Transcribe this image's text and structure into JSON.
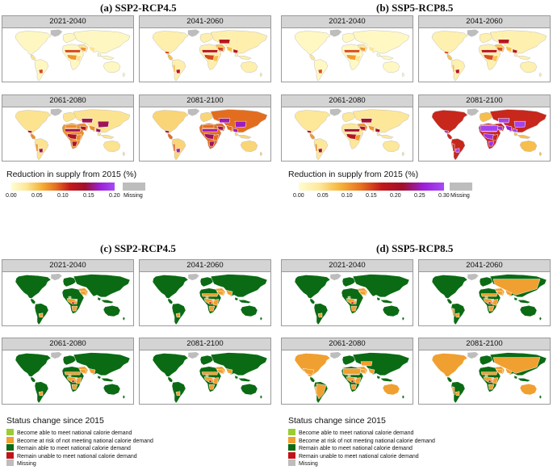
{
  "colors": {
    "ocean": "#ffffff",
    "border": "#bdbdbd",
    "missing": "#bdbdbd",
    "red_c": "#d7301f",
    "green_dark": "#0a6b14",
    "green_light": "#8bc34a",
    "orange_risk": "#f0a030",
    "darkred": "#c0141a"
  },
  "reduction": {
    "left": {
      "title": "(a) SSP2-RCP4.5",
      "legend_title": "Reduction in supply from 2015 (%)",
      "ticks": [
        "0.00",
        "0.05",
        "0.10",
        "0.15",
        "0.20"
      ],
      "gradient": [
        "#fffdd0",
        "#fde89a",
        "#f6b43a",
        "#e5711f",
        "#c2181b",
        "#a0102a",
        "#9b1fd6",
        "#a64bf4"
      ],
      "missing_label": "Missing",
      "periods": [
        "2021-2040",
        "2041-2060",
        "2061-2080",
        "2081-2100"
      ],
      "levels": [
        0.08,
        0.3,
        0.55,
        0.7
      ]
    },
    "right": {
      "title": "(b) SSP5-RCP8.5",
      "legend_title": "Reduction in supply from 2015 (%)",
      "ticks": [
        "0.00",
        "0.05",
        "0.10",
        "0.15",
        "0.20",
        "0.25",
        "0.30"
      ],
      "gradient": [
        "#fffdd0",
        "#fde89a",
        "#f6b43a",
        "#e5711f",
        "#c2181b",
        "#a0102a",
        "#9b1fd6",
        "#a64bf4"
      ],
      "missing_label": "Missing",
      "periods": [
        "2021-2040",
        "2041-2060",
        "2061-2080",
        "2081-2100"
      ],
      "levels": [
        0.06,
        0.28,
        0.5,
        0.95
      ]
    }
  },
  "status": {
    "left": {
      "title": "(c) SSP2-RCP4.5",
      "periods": [
        "2021-2040",
        "2041-2060",
        "2061-2080",
        "2081-2100"
      ],
      "risk": [
        0.25,
        0.45,
        0.5,
        0.55
      ]
    },
    "right": {
      "title": "(d) SSP5-RCP8.5",
      "periods": [
        "2021-2040",
        "2041-2060",
        "2061-2080",
        "2081-2100"
      ],
      "risk": [
        0.25,
        0.6,
        0.85,
        0.75
      ]
    },
    "legend_title": "Status change since 2015",
    "legend_items": [
      {
        "label": "Become able to meet national calorie demand",
        "color": "#9acd32"
      },
      {
        "label": "Become at risk of not meeting national calorie demand",
        "color": "#f0a030"
      },
      {
        "label": "Remain able to meet national calorie demand",
        "color": "#0a6b14"
      },
      {
        "label": "Remain unable to meet national calorie demand",
        "color": "#c0141a"
      },
      {
        "label": "Missing",
        "color": "#bdbdbd"
      }
    ]
  }
}
